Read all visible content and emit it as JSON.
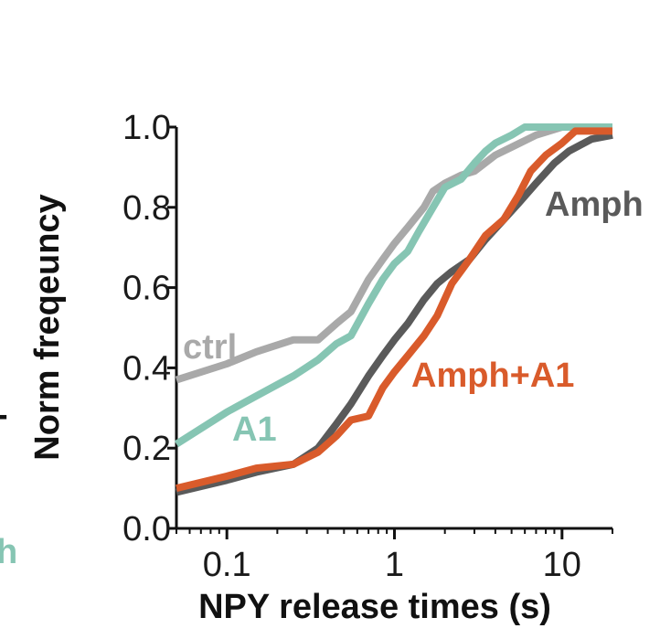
{
  "chart_data": {
    "type": "line",
    "title": "",
    "xlabel": "NPY release times (s)",
    "ylabel": "Norm freqeuncy",
    "xscale": "log",
    "xlim": [
      0.05,
      20
    ],
    "ylim": [
      0,
      1.0
    ],
    "xticks": [
      {
        "value": 0.1,
        "label": "0.1"
      },
      {
        "value": 1,
        "label": "1"
      },
      {
        "value": 10,
        "label": "10"
      }
    ],
    "yticks": [
      {
        "value": 0.0,
        "label": "0.0"
      },
      {
        "value": 0.2,
        "label": "0.2"
      },
      {
        "value": 0.4,
        "label": "0.4"
      },
      {
        "value": 0.6,
        "label": "0.6"
      },
      {
        "value": 0.8,
        "label": "0.8"
      },
      {
        "value": 1.0,
        "label": "1.0"
      }
    ],
    "grid": false,
    "series": [
      {
        "name": "ctrl",
        "color": "#a9a9a9",
        "points": [
          [
            0.05,
            0.37
          ],
          [
            0.1,
            0.41
          ],
          [
            0.15,
            0.44
          ],
          [
            0.25,
            0.47
          ],
          [
            0.35,
            0.47
          ],
          [
            0.45,
            0.51
          ],
          [
            0.55,
            0.54
          ],
          [
            0.7,
            0.62
          ],
          [
            0.85,
            0.67
          ],
          [
            1.0,
            0.71
          ],
          [
            1.2,
            0.75
          ],
          [
            1.5,
            0.8
          ],
          [
            1.7,
            0.84
          ],
          [
            2.0,
            0.86
          ],
          [
            2.5,
            0.88
          ],
          [
            3.0,
            0.89
          ],
          [
            4.0,
            0.93
          ],
          [
            5.0,
            0.95
          ],
          [
            7.0,
            0.98
          ],
          [
            10,
            1.0
          ],
          [
            20,
            1.0
          ]
        ]
      },
      {
        "name": "A1",
        "color": "#86c5b3",
        "points": [
          [
            0.05,
            0.21
          ],
          [
            0.1,
            0.29
          ],
          [
            0.15,
            0.33
          ],
          [
            0.25,
            0.38
          ],
          [
            0.35,
            0.42
          ],
          [
            0.45,
            0.46
          ],
          [
            0.55,
            0.48
          ],
          [
            0.7,
            0.56
          ],
          [
            0.85,
            0.62
          ],
          [
            1.0,
            0.66
          ],
          [
            1.2,
            0.69
          ],
          [
            1.4,
            0.74
          ],
          [
            1.7,
            0.8
          ],
          [
            2.0,
            0.85
          ],
          [
            2.5,
            0.87
          ],
          [
            3.0,
            0.91
          ],
          [
            3.5,
            0.94
          ],
          [
            4.0,
            0.96
          ],
          [
            5.0,
            0.98
          ],
          [
            6.0,
            1.0
          ],
          [
            20,
            1.0
          ]
        ]
      },
      {
        "name": "Amph",
        "color": "#5a5a5a",
        "points": [
          [
            0.05,
            0.09
          ],
          [
            0.1,
            0.12
          ],
          [
            0.15,
            0.14
          ],
          [
            0.25,
            0.16
          ],
          [
            0.35,
            0.2
          ],
          [
            0.45,
            0.26
          ],
          [
            0.55,
            0.31
          ],
          [
            0.7,
            0.38
          ],
          [
            0.85,
            0.43
          ],
          [
            1.0,
            0.47
          ],
          [
            1.2,
            0.51
          ],
          [
            1.5,
            0.57
          ],
          [
            1.8,
            0.61
          ],
          [
            2.2,
            0.64
          ],
          [
            2.8,
            0.67
          ],
          [
            3.5,
            0.72
          ],
          [
            4.5,
            0.77
          ],
          [
            5.5,
            0.81
          ],
          [
            7.0,
            0.86
          ],
          [
            9.0,
            0.91
          ],
          [
            11,
            0.94
          ],
          [
            15,
            0.97
          ],
          [
            20,
            0.98
          ]
        ]
      },
      {
        "name": "Amph+A1",
        "color": "#d95b2b",
        "points": [
          [
            0.05,
            0.1
          ],
          [
            0.1,
            0.13
          ],
          [
            0.15,
            0.15
          ],
          [
            0.25,
            0.16
          ],
          [
            0.35,
            0.19
          ],
          [
            0.45,
            0.23
          ],
          [
            0.55,
            0.27
          ],
          [
            0.7,
            0.28
          ],
          [
            0.85,
            0.35
          ],
          [
            1.0,
            0.39
          ],
          [
            1.2,
            0.43
          ],
          [
            1.5,
            0.48
          ],
          [
            1.8,
            0.53
          ],
          [
            2.2,
            0.61
          ],
          [
            2.8,
            0.67
          ],
          [
            3.5,
            0.73
          ],
          [
            4.5,
            0.77
          ],
          [
            5.5,
            0.83
          ],
          [
            6.5,
            0.89
          ],
          [
            8.0,
            0.93
          ],
          [
            10,
            0.96
          ],
          [
            12,
            0.99
          ],
          [
            20,
            0.99
          ]
        ]
      }
    ],
    "annotations": [
      {
        "text": "ctrl",
        "series": "ctrl"
      },
      {
        "text": "A1",
        "series": "A1"
      },
      {
        "text": "Amph",
        "series": "Amph"
      },
      {
        "text": "Amph+A1",
        "series": "Amph+A1"
      }
    ],
    "edge_fragments": [
      {
        "text": "h",
        "color": "#86c5b3"
      },
      {
        "text": "-",
        "color": "#111111"
      }
    ]
  }
}
